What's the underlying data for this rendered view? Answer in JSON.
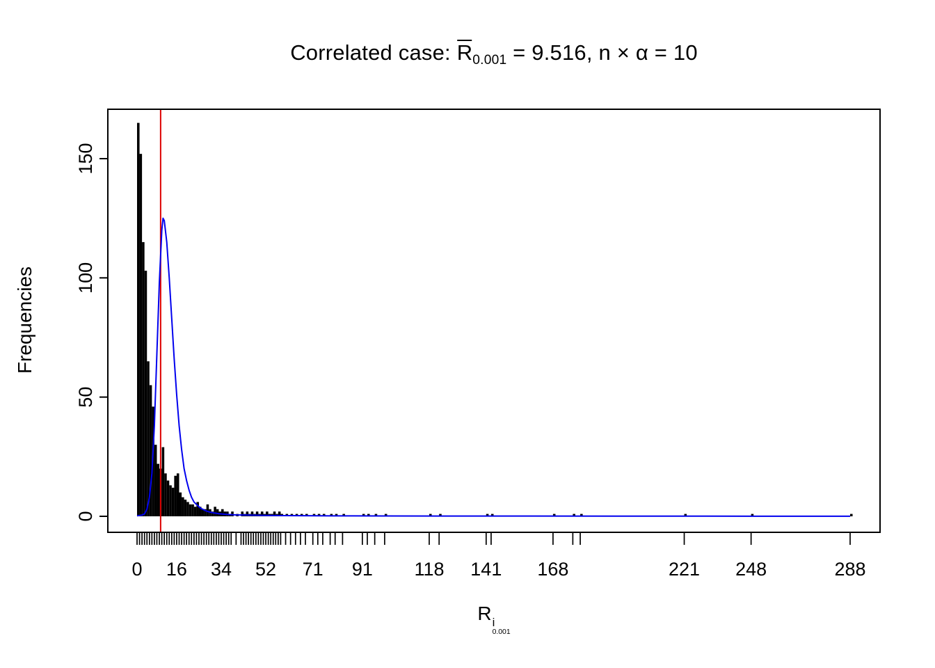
{
  "title": {
    "prefix": "Correlated case: ",
    "rbar": "R",
    "rbar_sub": "0.001",
    "rest": " = 9.516,  n × α = 10"
  },
  "ylabel": "Frequencies",
  "xlabel": {
    "base": "R",
    "sup": "i",
    "sub": "0.001"
  },
  "chart_data": {
    "type": "histogram",
    "title": "Correlated case: Rbar_0.001 = 9.516, n x alpha = 10",
    "xlabel": "R^i_0.001",
    "ylabel": "Frequencies",
    "x_ticks": [
      0,
      16,
      34,
      52,
      71,
      91,
      118,
      141,
      168,
      221,
      248,
      288
    ],
    "y_ticks": [
      0,
      50,
      100,
      150
    ],
    "xlim": [
      -11.8,
      300
    ],
    "ylim": [
      -6.7,
      171.5
    ],
    "bin_start": 0,
    "bin_width": 1,
    "counts": [
      165,
      152,
      115,
      103,
      65,
      55,
      46,
      30,
      22,
      20,
      29,
      18,
      15,
      13,
      12,
      17,
      18,
      10,
      8,
      7,
      6,
      5,
      5,
      4,
      6,
      4,
      3,
      3,
      5,
      3,
      2,
      4,
      3,
      2,
      3,
      2,
      2,
      1,
      2,
      0,
      1,
      0,
      2,
      1,
      2,
      1,
      2,
      1,
      2,
      1,
      2,
      1,
      2,
      1,
      1,
      2,
      1,
      2,
      1,
      0,
      1
    ],
    "outliers": [
      [
        62,
        1
      ],
      [
        64,
        1
      ],
      [
        66,
        1
      ],
      [
        68,
        1
      ],
      [
        71,
        1
      ],
      [
        73,
        1
      ],
      [
        75,
        1
      ],
      [
        78,
        1
      ],
      [
        80,
        1
      ],
      [
        83,
        1
      ],
      [
        91,
        1
      ],
      [
        93,
        1
      ],
      [
        96,
        1
      ],
      [
        100,
        1
      ],
      [
        118,
        1
      ],
      [
        122,
        1
      ],
      [
        141,
        1
      ],
      [
        143,
        1
      ],
      [
        168,
        1
      ],
      [
        176,
        1
      ],
      [
        179,
        1
      ],
      [
        221,
        1
      ],
      [
        248,
        1
      ],
      [
        288,
        1
      ]
    ],
    "vline": 9.516,
    "density_curve": [
      [
        0,
        0.2
      ],
      [
        2,
        0.5
      ],
      [
        3,
        1
      ],
      [
        4,
        3
      ],
      [
        5,
        8
      ],
      [
        6,
        18
      ],
      [
        7,
        38
      ],
      [
        8,
        68
      ],
      [
        9,
        98
      ],
      [
        10,
        120
      ],
      [
        10.5,
        125
      ],
      [
        11,
        124
      ],
      [
        12,
        115
      ],
      [
        13,
        100
      ],
      [
        14,
        83
      ],
      [
        15,
        66
      ],
      [
        16,
        51
      ],
      [
        17,
        38
      ],
      [
        18,
        28
      ],
      [
        19,
        20
      ],
      [
        20,
        15
      ],
      [
        21,
        11
      ],
      [
        22,
        8
      ],
      [
        23,
        6
      ],
      [
        24,
        5
      ],
      [
        25,
        4
      ],
      [
        26,
        3.2
      ],
      [
        28,
        2.2
      ],
      [
        30,
        1.6
      ],
      [
        33,
        1.1
      ],
      [
        36,
        0.8
      ],
      [
        40,
        0.6
      ],
      [
        45,
        0.5
      ],
      [
        50,
        0.4
      ],
      [
        60,
        0.3
      ],
      [
        80,
        0.2
      ],
      [
        100,
        0.15
      ],
      [
        150,
        0.1
      ],
      [
        200,
        0.08
      ],
      [
        250,
        0.05
      ],
      [
        288,
        0.05
      ]
    ],
    "colors": {
      "bar": "#000000",
      "curve": "#0000EE",
      "vline": "#DD0000",
      "axis": "#000000"
    },
    "legend": "none",
    "grid": false
  }
}
